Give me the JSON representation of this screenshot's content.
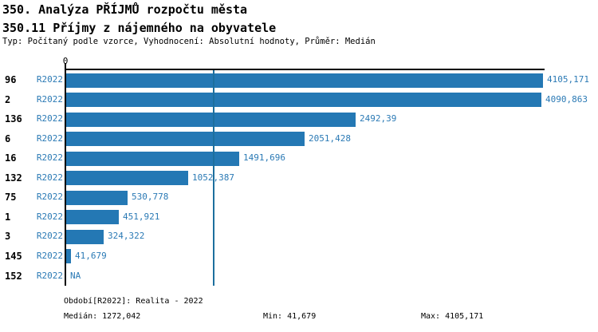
{
  "header": {
    "title": "350. Analýza PŘÍJMŮ rozpočtu města",
    "subtitle": "350.11 Příjmy z nájemného na obyvatele",
    "meta": "Typ: Počítaný podle vzorce, Vyhodnocení: Absolutní hodnoty, Průměr: Medián"
  },
  "chart_data": {
    "type": "bar",
    "orientation": "horizontal",
    "title": "350.11 Příjmy z nájemného na obyvatele",
    "x_tick_label": "0",
    "xlim": [
      0,
      4105.171
    ],
    "series_label": "R2022",
    "categories": [
      "96",
      "2",
      "136",
      "6",
      "16",
      "132",
      "75",
      "1",
      "3",
      "145",
      "152"
    ],
    "values": [
      4105.171,
      4090.863,
      2492.39,
      2051.428,
      1491.696,
      1052.387,
      530.778,
      451.921,
      324.322,
      41.679,
      null
    ],
    "value_labels": [
      "4105,171",
      "4090,863",
      "2492,39",
      "2051,428",
      "1491,696",
      "1052,387",
      "530,778",
      "451,921",
      "324,322",
      "41,679",
      "NA"
    ],
    "median_line_value": 1272.042,
    "grid": false,
    "legend": false,
    "colors": {
      "bar": "#2478b4",
      "blue_text": "#2b7ab5",
      "median_line": "#1d6f9e",
      "axis": "#000000"
    }
  },
  "footer": {
    "period_label": "Období[R2022]: Realita - 2022",
    "median_label": "Medián: 1272,042",
    "min_label": "Min: 41,679",
    "max_label": "Max: 4105,171"
  }
}
